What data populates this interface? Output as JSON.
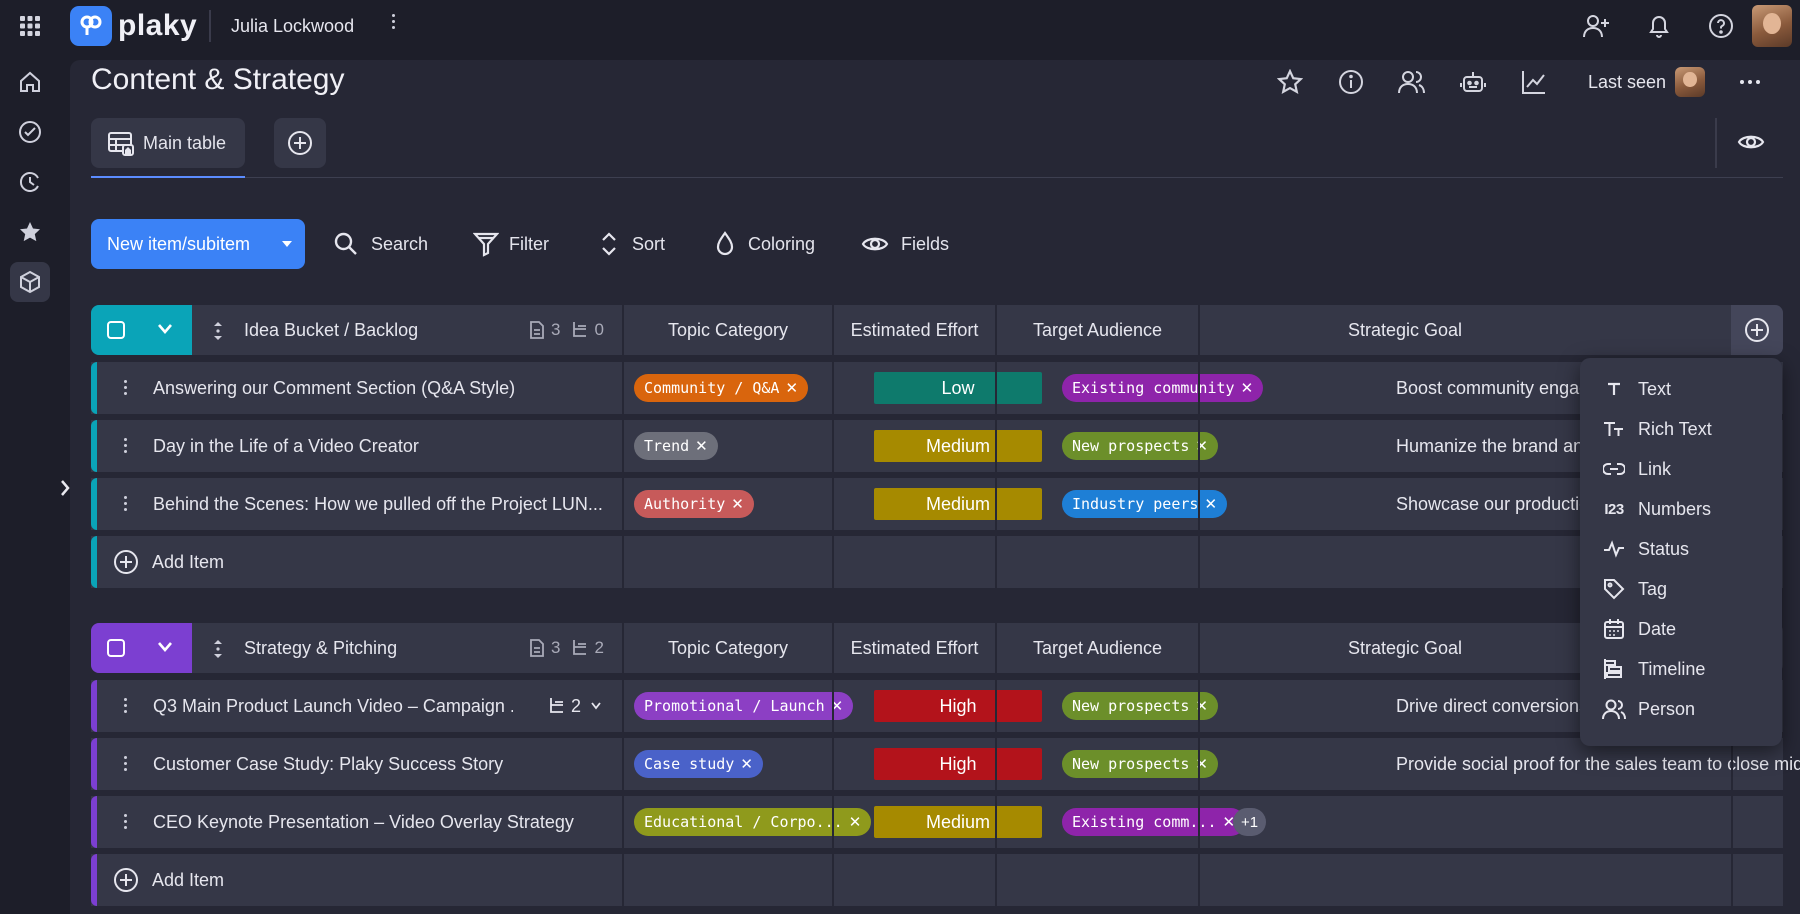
{
  "app": {
    "logo_text": "plaky",
    "workspace_user": "Julia Lockwood"
  },
  "board": {
    "title": "Content & Strategy",
    "last_seen_label": "Last seen"
  },
  "views": {
    "main_table_label": "Main table"
  },
  "toolbar": {
    "new_item_label": "New item/subitem",
    "search_label": "Search",
    "filter_label": "Filter",
    "sort_label": "Sort",
    "coloring_label": "Coloring",
    "fields_label": "Fields"
  },
  "columns": [
    "Topic Category",
    "Estimated Effort",
    "Target Audience",
    "Strategic Goal"
  ],
  "groups": [
    {
      "name": "Idea Bucket / Backlog",
      "accent": "#0aa4b8",
      "item_count": "3",
      "subitem_count": "0",
      "add_item_label": "Add Item",
      "rows": [
        {
          "title": "Answering our Comment Section (Q&A Style)",
          "topic": {
            "label": "Community / Q&A",
            "color": "#d9650d"
          },
          "effort": {
            "label": "Low",
            "color": "#0e7a6c"
          },
          "audience": {
            "label": "Existing community",
            "color": "#8e24aa"
          },
          "goal": "Boost community engagement and"
        },
        {
          "title": "Day in the Life of a Video Creator",
          "topic": {
            "label": "Trend",
            "color": "#6d6f7a"
          },
          "effort": {
            "label": "Medium",
            "color": "#a68a00"
          },
          "audience": {
            "label": "New prospects",
            "color": "#6c8f2a"
          },
          "goal": "Humanize the brand and attract top"
        },
        {
          "title": "Behind the Scenes: How we pulled off the Project LUN...",
          "topic": {
            "label": "Authority",
            "color": "#c75a5a"
          },
          "effort": {
            "label": "Medium",
            "color": "#a68a00"
          },
          "audience": {
            "label": "Industry peers",
            "color": "#1e7fd6"
          },
          "goal": "Showcase our production expertise"
        }
      ]
    },
    {
      "name": "Strategy & Pitching",
      "accent": "#7c3fd1",
      "item_count": "3",
      "subitem_count": "2",
      "add_item_label": "Add Item",
      "rows": [
        {
          "title": "Q3 Main Product Launch Video – Campaign ...",
          "subitems": "2",
          "topic": {
            "label": "Promotional / Launch",
            "color": "#8c3fc4"
          },
          "effort": {
            "label": "High",
            "color": "#b3131b"
          },
          "audience": {
            "label": "New prospects",
            "color": "#6c8f2a"
          },
          "goal": "Drive direct conversions and sign-u"
        },
        {
          "title": "Customer Case Study: Plaky Success Story",
          "topic": {
            "label": "Case study",
            "color": "#4a62c9"
          },
          "effort": {
            "label": "High",
            "color": "#b3131b"
          },
          "audience": {
            "label": "New prospects",
            "color": "#6c8f2a"
          },
          "goal": "Provide social proof for the sales team to close mid-f..."
        },
        {
          "title": "CEO Keynote Presentation – Video Overlay Strategy",
          "topic": {
            "label": "Educational / Corpo...",
            "color": "#8f9a1c"
          },
          "effort": {
            "label": "Medium",
            "color": "#a68a00"
          },
          "audience": {
            "label": "Existing comm...",
            "color": "#8e24aa"
          },
          "audience_more": "+1",
          "goal": ""
        }
      ]
    }
  ],
  "field_menu": {
    "items": [
      {
        "label": "Text",
        "icon": "text-icon"
      },
      {
        "label": "Rich Text",
        "icon": "rich-text-icon"
      },
      {
        "label": "Link",
        "icon": "link-icon"
      },
      {
        "label": "Numbers",
        "icon": "numbers-icon"
      },
      {
        "label": "Status",
        "icon": "status-icon"
      },
      {
        "label": "Tag",
        "icon": "tag-icon"
      },
      {
        "label": "Date",
        "icon": "calendar-icon"
      },
      {
        "label": "Timeline",
        "icon": "timeline-icon"
      },
      {
        "label": "Person",
        "icon": "person-icon"
      }
    ]
  }
}
